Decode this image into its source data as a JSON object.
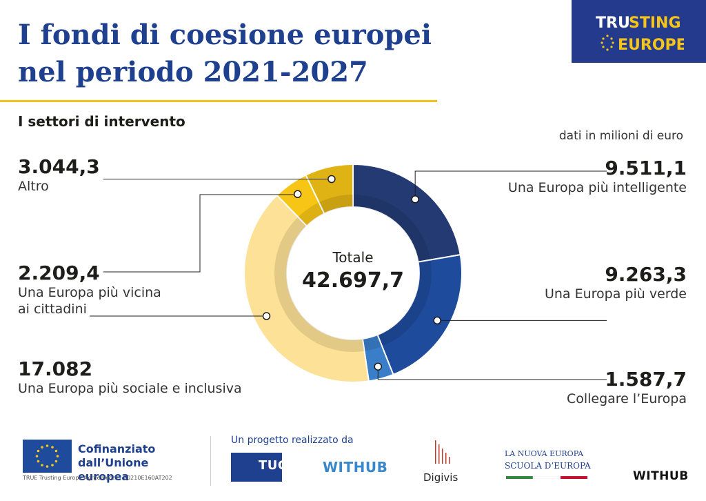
{
  "header": {
    "title_line1": "I fondi di coesione europei",
    "title_line2": "nel periodo 2021-2027",
    "subtitle": "I settori di intervento",
    "unit_note": "dati in milioni di euro",
    "logo_text": "TRUSTING EUROPE"
  },
  "chart_data": {
    "type": "donut",
    "title": "I fondi di coesione europei nel periodo 2021-2027",
    "subtitle": "I settori di intervento",
    "unit": "dati in milioni di euro",
    "center_label": "Totale",
    "total_label": "42.697,7",
    "total": 42697.7,
    "slices": [
      {
        "name": "Una Europa più intelligente",
        "value": 9511.1,
        "label": "9.511,1",
        "color": "#233a73"
      },
      {
        "name": "Una Europa più verde",
        "value": 9263.3,
        "label": "9.263,3",
        "color": "#1f4b9c"
      },
      {
        "name": "Collegare l’Europa",
        "value": 1587.7,
        "label": "1.587,7",
        "color": "#3a7dc9"
      },
      {
        "name": "Una Europa più sociale e inclusiva",
        "value": 17082,
        "label": "17.082",
        "color": "#fce196"
      },
      {
        "name": "Una Europa più vicina ai cittadini",
        "value": 2209.4,
        "label": "2.209,4",
        "color": "#f7c516"
      },
      {
        "name": "Altro",
        "value": 3044.3,
        "label": "3.044,3",
        "color": "#e0b315"
      }
    ]
  },
  "labels": {
    "altro": {
      "value": "3.044,3",
      "name": "Altro"
    },
    "vicina": {
      "value": "2.209,4",
      "name1": "Una Europa più vicina",
      "name2": "ai cittadini"
    },
    "sociale": {
      "value": "17.082",
      "name": "Una Europa più sociale e inclusiva"
    },
    "intelligente": {
      "value": "9.511,1",
      "name": "Una Europa più intelligente"
    },
    "verde": {
      "value": "9.263,3",
      "name": "Una Europa più verde"
    },
    "collegare": {
      "value": "1.587,7",
      "name": "Collegare l’Europa"
    }
  },
  "footer": {
    "cofinanziato": "Cofinanziato dall’Unione europea",
    "agreement": "TRUE Trusting Europe Agreement n. 20210E160AT202",
    "progetto": "Un progetto realizzato da",
    "tucep": "TUCEP",
    "withub": "WITHUB",
    "digivis": "Digivis",
    "nuova_europa": "LA NUOVA EUROPA",
    "scuola": "SCUOLA D’EUROPA",
    "withub_right": "WITHUB"
  }
}
